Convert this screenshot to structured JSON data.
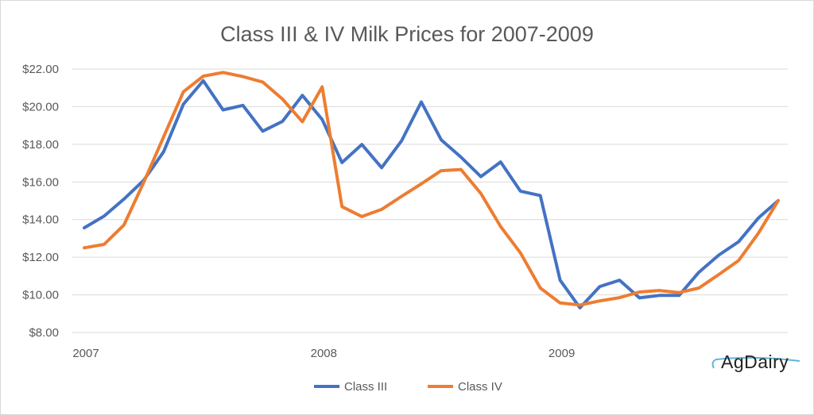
{
  "logo": {
    "text": "AgDairy"
  },
  "chart_data": {
    "type": "line",
    "title": "Class III & IV Milk Prices for 2007-2009",
    "xlabel": "",
    "ylabel": "",
    "ylim": [
      8,
      22
    ],
    "yticks": [
      8,
      10,
      12,
      14,
      16,
      18,
      20,
      22
    ],
    "ytick_labels": [
      "$8.00",
      "$10.00",
      "$12.00",
      "$14.00",
      "$16.00",
      "$18.00",
      "$20.00",
      "$22.00"
    ],
    "x_range": [
      2007.0,
      2009.9167
    ],
    "xticks": [
      2007,
      2008,
      2009
    ],
    "xtick_labels": [
      "2007",
      "2008",
      "2009"
    ],
    "x": [
      2007.0,
      2007.0833,
      2007.1667,
      2007.25,
      2007.3333,
      2007.4167,
      2007.5,
      2007.5833,
      2007.6667,
      2007.75,
      2007.8333,
      2007.9167,
      2008.0,
      2008.0833,
      2008.1667,
      2008.25,
      2008.3333,
      2008.4167,
      2008.5,
      2008.5833,
      2008.6667,
      2008.75,
      2008.8333,
      2008.9167,
      2009.0,
      2009.0833,
      2009.1667,
      2009.25,
      2009.3333,
      2009.4167,
      2009.5,
      2009.5833,
      2009.6667,
      2009.75,
      2009.8333,
      2009.9167
    ],
    "series": [
      {
        "name": "Class III",
        "color": "#4472c4",
        "values": [
          13.56,
          14.18,
          15.09,
          16.09,
          17.6,
          20.13,
          21.38,
          19.83,
          20.07,
          18.7,
          19.22,
          20.6,
          19.32,
          17.03,
          17.99,
          16.76,
          18.18,
          20.25,
          18.24,
          17.32,
          16.28,
          17.06,
          15.51,
          15.28,
          10.78,
          9.31,
          10.44,
          10.78,
          9.84,
          9.97,
          9.97,
          11.2,
          12.11,
          12.82,
          14.08,
          15.01
        ]
      },
      {
        "name": "Class IV",
        "color": "#ed7d31",
        "values": [
          12.5,
          12.68,
          13.71,
          15.98,
          18.39,
          20.79,
          21.62,
          21.82,
          21.6,
          21.31,
          20.4,
          19.2,
          21.05,
          14.69,
          14.16,
          14.54,
          15.23,
          15.9,
          16.6,
          16.66,
          15.39,
          13.63,
          12.23,
          10.36,
          9.57,
          9.46,
          9.68,
          9.85,
          10.15,
          10.23,
          10.12,
          10.36,
          11.08,
          11.82,
          13.27,
          15.01
        ]
      }
    ],
    "grid": true,
    "legend_position": "bottom"
  }
}
